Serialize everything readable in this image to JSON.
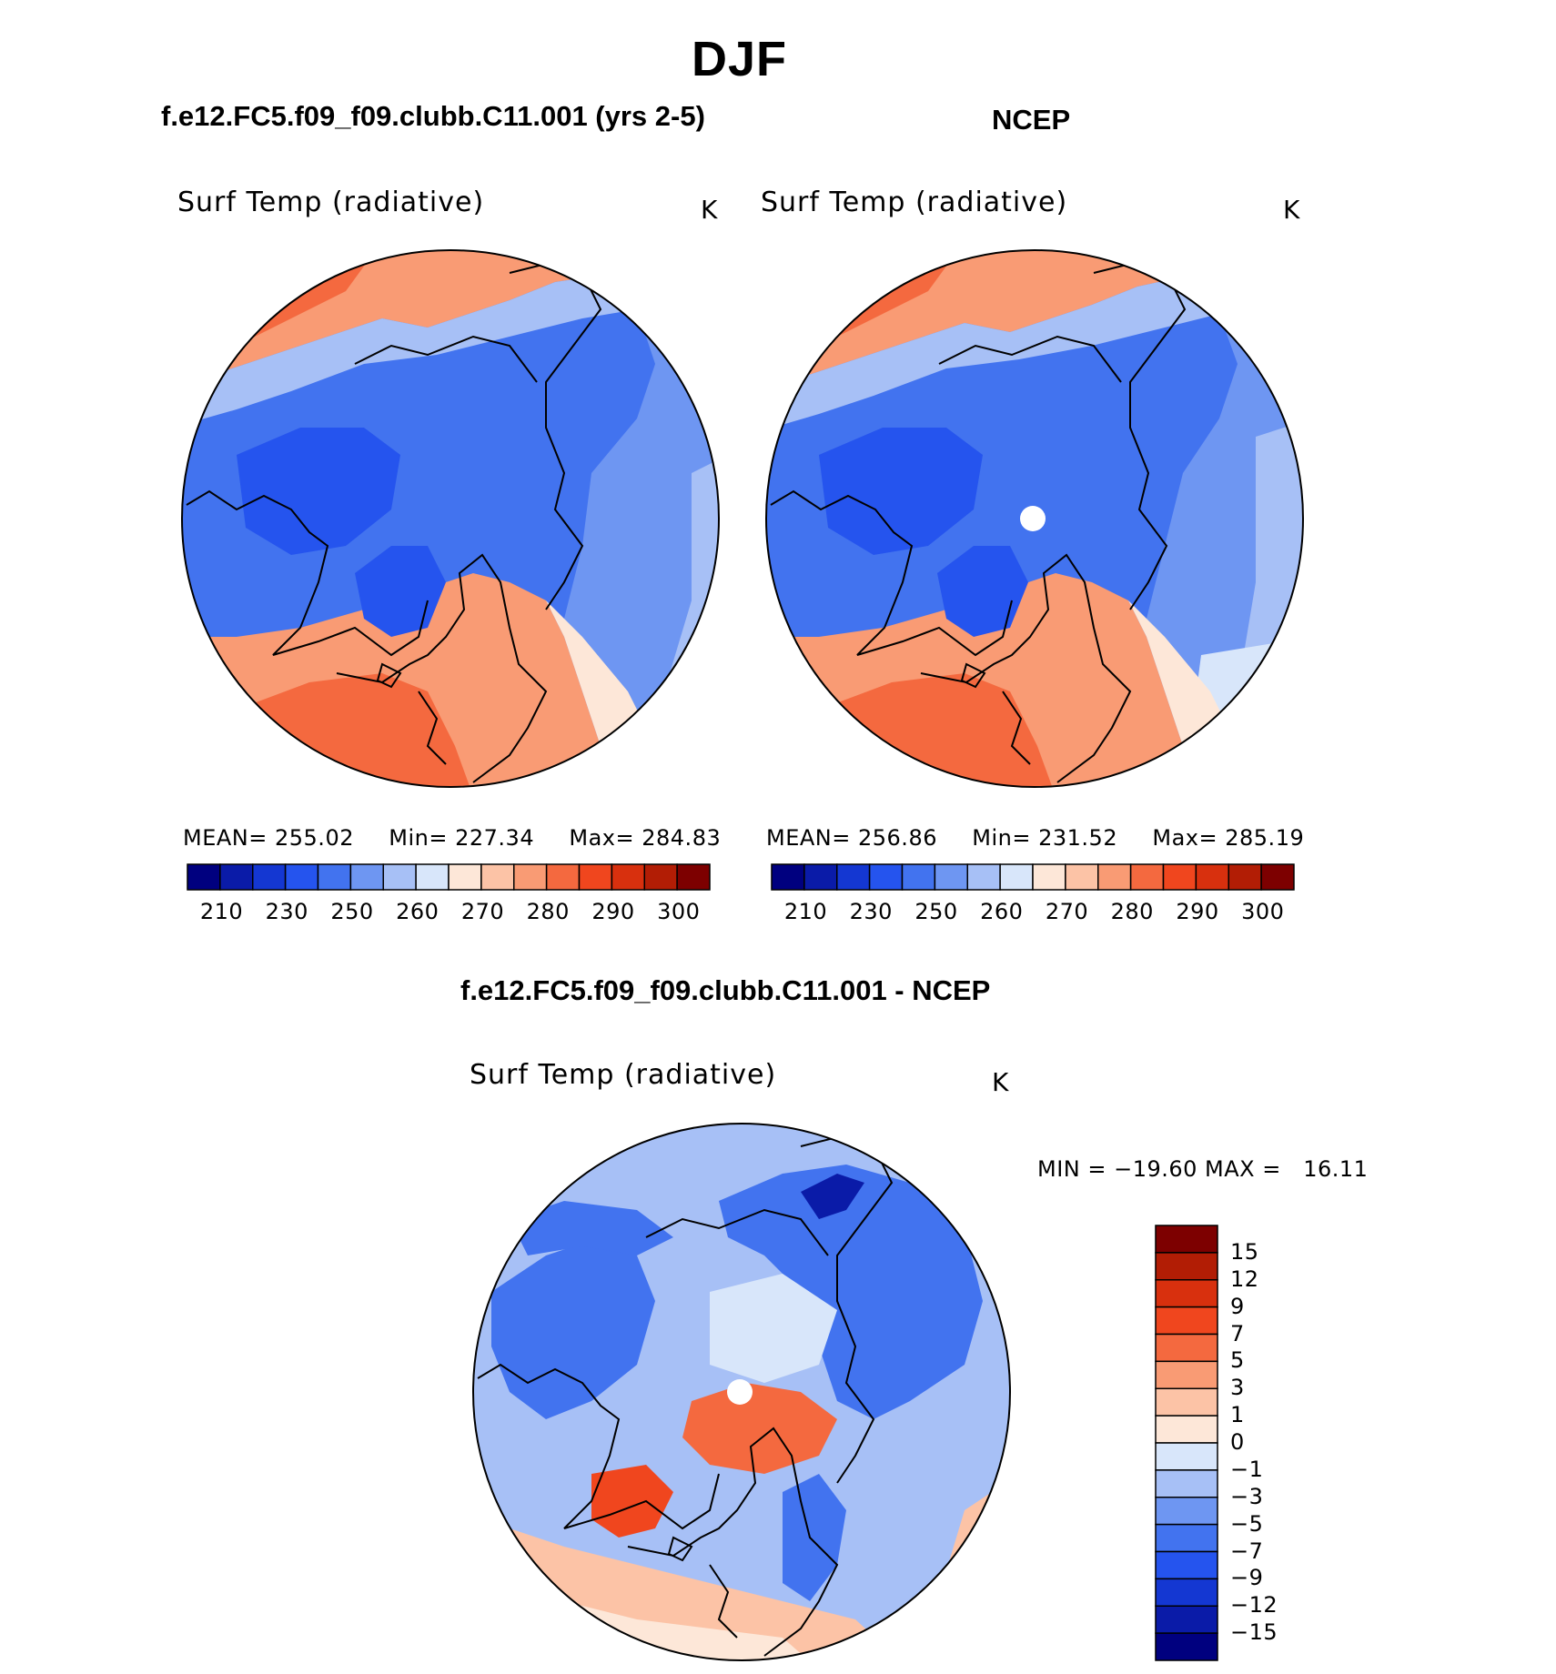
{
  "header": {
    "main_title": "DJF",
    "left_case_title": "f.e12.FC5.f09_f09.clubb.C11.001 (yrs 2-5)",
    "right_case_title": "NCEP",
    "diff_title": "f.e12.FC5.f09_f09.clubb.C11.001 - NCEP"
  },
  "chart_data": [
    {
      "type": "heatmap",
      "projection": "north-polar-stereographic",
      "title": "Surf Temp (radiative)",
      "units": "K",
      "stats": {
        "mean_label": "MEAN=",
        "mean": "255.02",
        "min_label": "Min=",
        "min": "227.34",
        "max_label": "Max=",
        "max": "284.83"
      },
      "colorbar": {
        "orientation": "horizontal",
        "levels": [
          210,
          220,
          230,
          240,
          250,
          255,
          260,
          265,
          270,
          275,
          280,
          285,
          290,
          295,
          300
        ],
        "tick_labels": [
          "210",
          "230",
          "250",
          "260",
          "270",
          "280",
          "290",
          "300"
        ],
        "colors": [
          "#00007f",
          "#0a1ba8",
          "#1437d2",
          "#2554ee",
          "#4273ef",
          "#6e96f2",
          "#a7c0f6",
          "#d8e6fa",
          "#fde7d8",
          "#fcc3a6",
          "#f99b74",
          "#f4693f",
          "#f0461e",
          "#d8300e",
          "#b21d05",
          "#7d0000"
        ]
      }
    },
    {
      "type": "heatmap",
      "projection": "north-polar-stereographic",
      "title": "Surf Temp (radiative)",
      "units": "K",
      "stats": {
        "mean_label": "MEAN=",
        "mean": "256.86",
        "min_label": "Min=",
        "min": "231.52",
        "max_label": "Max=",
        "max": "285.19"
      },
      "colorbar": {
        "orientation": "horizontal",
        "levels": [
          210,
          220,
          230,
          240,
          250,
          255,
          260,
          265,
          270,
          275,
          280,
          285,
          290,
          295,
          300
        ],
        "tick_labels": [
          "210",
          "230",
          "250",
          "260",
          "270",
          "280",
          "290",
          "300"
        ],
        "colors": [
          "#00007f",
          "#0a1ba8",
          "#1437d2",
          "#2554ee",
          "#4273ef",
          "#6e96f2",
          "#a7c0f6",
          "#d8e6fa",
          "#fde7d8",
          "#fcc3a6",
          "#f99b74",
          "#f4693f",
          "#f0461e",
          "#d8300e",
          "#b21d05",
          "#7d0000"
        ]
      }
    },
    {
      "type": "heatmap",
      "projection": "north-polar-stereographic",
      "title": "Surf Temp (radiative)",
      "units": "K",
      "stats": {
        "text": "MIN = −19.60 MAX =   16.11",
        "min": -19.6,
        "max": 16.11
      },
      "colorbar": {
        "orientation": "vertical",
        "tick_labels": [
          "15",
          "12",
          "9",
          "7",
          "5",
          "3",
          "1",
          "0",
          "−1",
          "−3",
          "−5",
          "−7",
          "−9",
          "−12",
          "−15"
        ],
        "colors": [
          "#7d0000",
          "#b21d05",
          "#d8300e",
          "#f0461e",
          "#f4693f",
          "#f99b74",
          "#fcc3a6",
          "#fde7d8",
          "#d8e6fa",
          "#a7c0f6",
          "#6e96f2",
          "#4273ef",
          "#2554ee",
          "#1437d2",
          "#0a1ba8",
          "#00007f"
        ]
      }
    }
  ]
}
